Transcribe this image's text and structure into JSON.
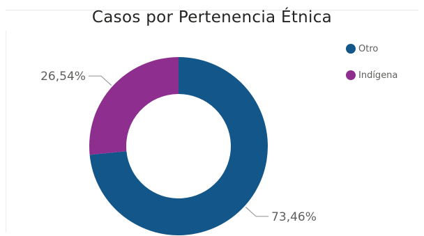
{
  "chart_data": {
    "type": "pie",
    "donut": true,
    "title": "Casos por Pertenencia Étnica",
    "slices": [
      {
        "label": "Otro",
        "value": 73.46,
        "display": "73,46%",
        "color": "#13578a"
      },
      {
        "label": "Indígena",
        "value": 26.54,
        "display": "26,54%",
        "color": "#8e2f8f"
      }
    ],
    "legend_position": "top-right"
  }
}
